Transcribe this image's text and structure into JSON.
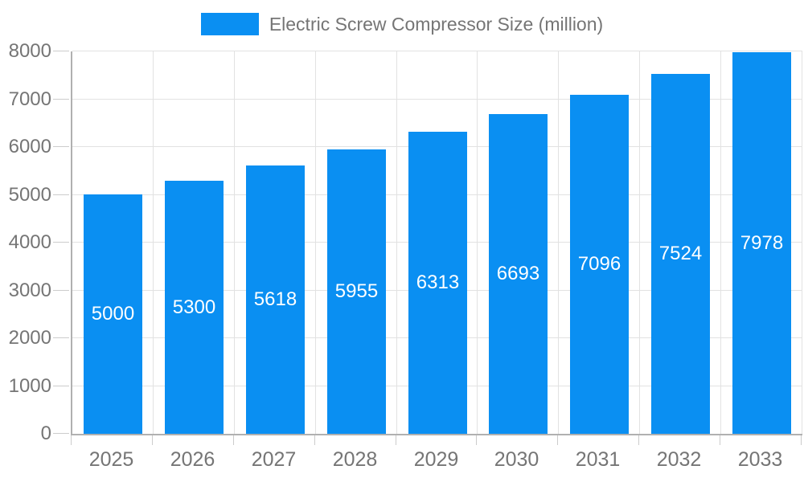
{
  "chart_data": {
    "type": "bar",
    "title": "Electric Screw Compressor Size (million)",
    "legend": [
      "Electric Screw Compressor Size (million)"
    ],
    "legend_position": "top-center",
    "categories": [
      "2025",
      "2026",
      "2027",
      "2028",
      "2029",
      "2030",
      "2031",
      "2032",
      "2033"
    ],
    "series": [
      {
        "name": "Electric Screw Compressor Size (million)",
        "values": [
          5000,
          5300,
          5618,
          5955,
          6313,
          6693,
          7096,
          7524,
          7978
        ]
      }
    ],
    "bar_value_labels": [
      "5000",
      "5300",
      "5618",
      "5955",
      "6313",
      "6693",
      "7096",
      "7524",
      "7978"
    ],
    "xlabel": "",
    "ylabel": "",
    "ylim": [
      0,
      8000
    ],
    "yticks": [
      0,
      1000,
      2000,
      3000,
      4000,
      5000,
      6000,
      7000,
      8000
    ],
    "grid": "horizontal and vertical light gray gridlines"
  },
  "colors": {
    "bar": "#0a8ff2",
    "bar_label_text": "#ffffff",
    "axis_label_text": "#757575",
    "legend_text": "#757575",
    "gridline": "#e2e2e2",
    "axis_line": "#b0b0b0",
    "tick": "#cccccc",
    "background": "#ffffff"
  }
}
